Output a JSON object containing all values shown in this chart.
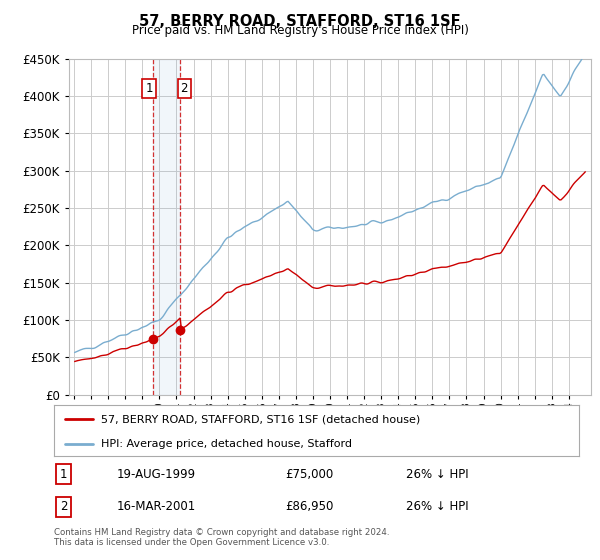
{
  "title": "57, BERRY ROAD, STAFFORD, ST16 1SF",
  "subtitle": "Price paid vs. HM Land Registry's House Price Index (HPI)",
  "footer": "Contains HM Land Registry data © Crown copyright and database right 2024.\nThis data is licensed under the Open Government Licence v3.0.",
  "legend_line1": "57, BERRY ROAD, STAFFORD, ST16 1SF (detached house)",
  "legend_line2": "HPI: Average price, detached house, Stafford",
  "sale1_date": "19-AUG-1999",
  "sale1_price": "£75,000",
  "sale1_hpi": "26% ↓ HPI",
  "sale2_date": "16-MAR-2001",
  "sale2_price": "£86,950",
  "sale2_hpi": "26% ↓ HPI",
  "hpi_color": "#7aadcf",
  "sale_color": "#cc0000",
  "background_color": "#ffffff",
  "grid_color": "#cccccc",
  "ylim": [
    0,
    450000
  ],
  "yticks": [
    0,
    50000,
    100000,
    150000,
    200000,
    250000,
    300000,
    350000,
    400000,
    450000
  ],
  "sale1_x": 1999.64,
  "sale1_y": 75000,
  "sale2_x": 2001.21,
  "sale2_y": 86950,
  "xlim_left": 1994.7,
  "xlim_right": 2025.3
}
